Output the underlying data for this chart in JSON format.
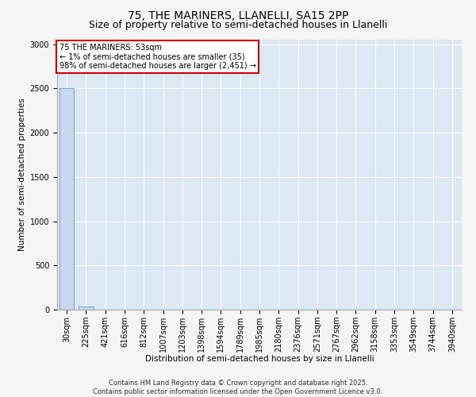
{
  "title": "75, THE MARINERS, LLANELLI, SA15 2PP",
  "subtitle": "Size of property relative to semi-detached houses in Llanelli",
  "xlabel": "Distribution of semi-detached houses by size in Llanelli",
  "ylabel": "Number of semi-detached properties",
  "footer_line1": "Contains HM Land Registry data © Crown copyright and database right 2025.",
  "footer_line2": "Contains public sector information licensed under the Open Government Licence v3.0.",
  "annotation_line1": "75 THE MARINERS: 53sqm",
  "annotation_line2": "← 1% of semi-detached houses are smaller (35)",
  "annotation_line3": "98% of semi-detached houses are larger (2,451) →",
  "categories": [
    "30sqm",
    "225sqm",
    "421sqm",
    "616sqm",
    "812sqm",
    "1007sqm",
    "1203sqm",
    "1398sqm",
    "1594sqm",
    "1789sqm",
    "1985sqm",
    "2180sqm",
    "2376sqm",
    "2571sqm",
    "2767sqm",
    "2962sqm",
    "3158sqm",
    "3353sqm",
    "3549sqm",
    "3744sqm",
    "3940sqm"
  ],
  "values": [
    2500,
    35,
    2,
    1,
    0,
    0,
    0,
    0,
    0,
    0,
    0,
    0,
    0,
    0,
    0,
    0,
    0,
    0,
    0,
    0,
    0
  ],
  "bar_color": "#c8d8ee",
  "bar_edgecolor": "#7aacda",
  "annotation_box_edgecolor": "#cc0000",
  "annotation_box_facecolor": "#ffffff",
  "background_color": "#f5f5f5",
  "plot_background": "#dde8f5",
  "grid_color": "#ffffff",
  "ylim": [
    0,
    3050
  ],
  "yticks": [
    0,
    500,
    1000,
    1500,
    2000,
    2500,
    3000
  ],
  "title_fontsize": 10,
  "subtitle_fontsize": 9,
  "axis_label_fontsize": 7.5,
  "tick_fontsize": 7,
  "annotation_fontsize": 7,
  "footer_fontsize": 6
}
